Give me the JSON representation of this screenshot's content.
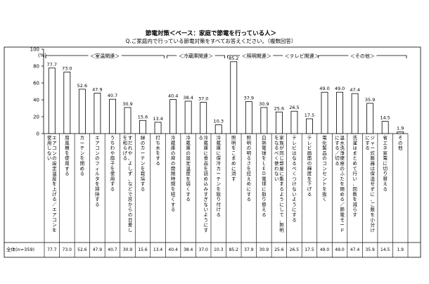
{
  "chart_data": {
    "type": "bar",
    "title": "節電対策＜ベース：家庭で節電を行っている人＞",
    "subtitle": "Q.ご家庭内で行っている節電対策をすべてお答えください。（複数回答）",
    "ylabel": "(%)",
    "ylim": [
      0,
      100
    ],
    "yticks": [
      0,
      20,
      40,
      60,
      80,
      100
    ],
    "grid": false,
    "categories": [
      "エアコンの設定温度を上げる／エアコンを使用しない",
      "扇風機を使用する",
      "カーテンを閉める",
      "エアコンのフィルタを掃除する",
      "うちわや扇子を使用する",
      "すだれや、よしず、などで窓からの日差しを和らげる",
      "緑のカーテンを栽培する",
      "打ち水をする",
      "冷蔵庫の扉の開閉時間を短くする",
      "冷蔵庫の設定温度を弱くする",
      "冷蔵庫に食品を詰め込みすぎないようにする",
      "冷蔵庫に保冷カーテンを取り付ける",
      "照明をこまめに消す",
      "照明の明るさを控えめにする",
      "白熱電球をＬＥＤ電球に取り替える",
      "家族が同じ部屋に集まるようにして、照明をなるべく使わない",
      "テレビはなるべくつけないようにする",
      "テレビ画面の輝度を下げる",
      "電化製品のコンセントを抜く",
      "温水洗浄便座のふたを閉める／節電モードにする／切る",
      "洗濯はまとめて行い、回数を減らす",
      "ジャー炊飯器は保温せずに、ご飯を小分けにする",
      "省エネ家電に切り替える",
      "その他"
    ],
    "values": [
      77.7,
      73.0,
      52.6,
      47.9,
      40.7,
      30.9,
      15.6,
      13.4,
      40.4,
      38.4,
      37.0,
      10.3,
      85.2,
      37.9,
      30.9,
      25.6,
      26.5,
      17.5,
      49.0,
      49.0,
      47.4,
      35.9,
      14.5,
      1.9
    ],
    "groups": [
      {
        "label": "＜室温関連＞",
        "start": 0,
        "end": 7
      },
      {
        "label": "＜冷蔵庫関連＞",
        "start": 8,
        "end": 11
      },
      {
        "label": "＜照明関連＞",
        "start": 12,
        "end": 15
      },
      {
        "label": "＜テレビ関連＞",
        "start": 16,
        "end": 17
      },
      {
        "label": "＜その他＞",
        "start": 18,
        "end": 23
      }
    ],
    "table_row_label": "全体(n=359)",
    "table_values": [
      "77.7",
      "73.0",
      "52.6",
      "47.9",
      "40.7",
      "30.9",
      "15.6",
      "13.4",
      "40.4",
      "38.4",
      "37.0",
      "10.3",
      "85.2",
      "37.9",
      "30.9",
      "25.6",
      "26.5",
      "17.5",
      "49.0",
      "49.0",
      "47.4",
      "35.9",
      "14.5",
      "1.9"
    ],
    "colors": {
      "bar_fill": "#ffffff",
      "bar_stroke": "#000000",
      "axis": "#000000",
      "text": "#000000"
    }
  }
}
